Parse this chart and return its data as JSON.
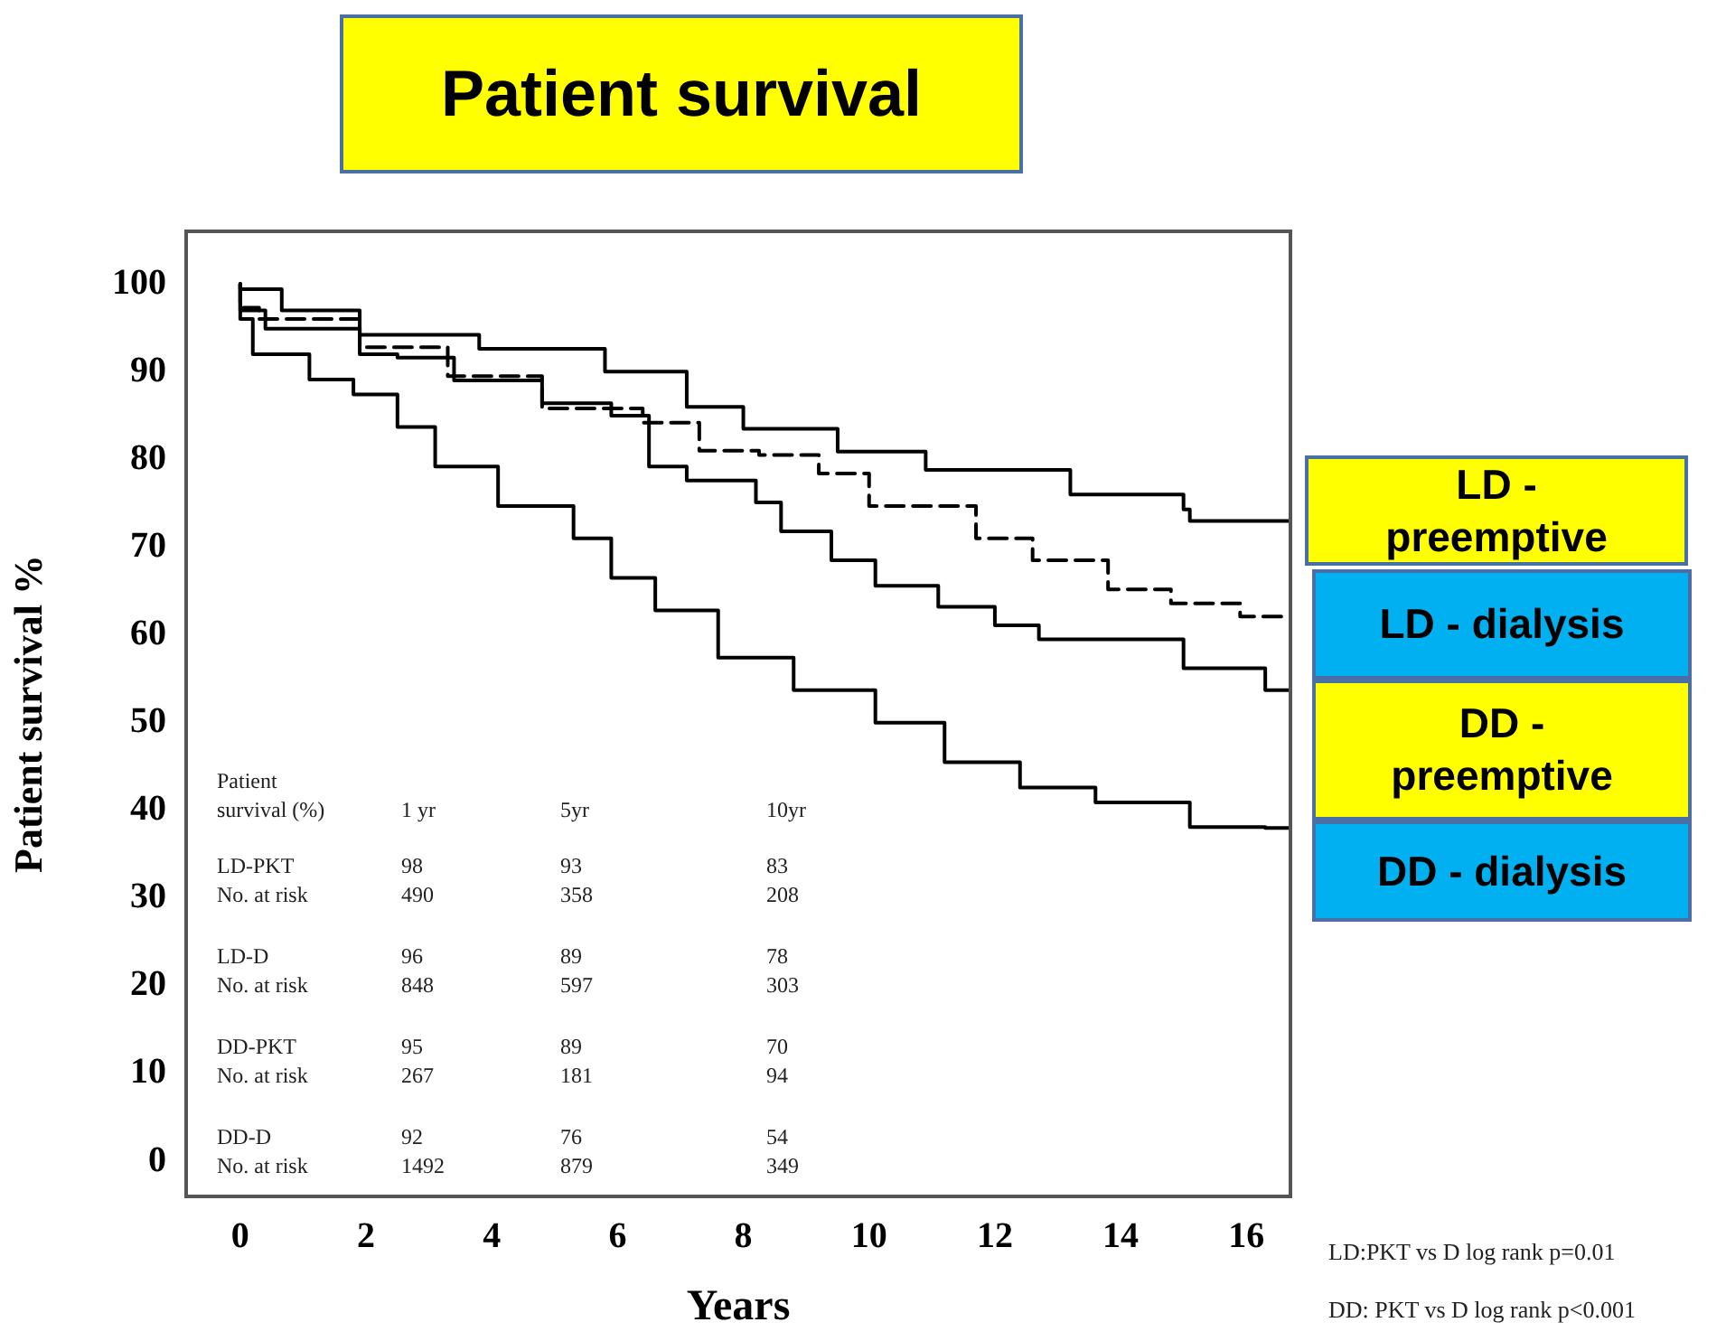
{
  "chart_data": {
    "type": "step",
    "title": "Patient survival",
    "xlabel": "Years",
    "ylabel": "Patient survival %",
    "xlim": [
      -0.86,
      16.7
    ],
    "xticks": [
      0,
      2,
      4,
      6,
      8,
      10,
      12,
      14,
      16
    ],
    "ylim": [
      -4,
      106
    ],
    "yticks": [
      0,
      10,
      20,
      30,
      40,
      50,
      60,
      70,
      80,
      90,
      100
    ],
    "grid": false,
    "legend": false,
    "marker": "none",
    "series": [
      {
        "name": "LD - preemptive",
        "color": "#000000",
        "line_style": "solid",
        "x": [
          0,
          0.66,
          1.9,
          3.8,
          5.8,
          7.1,
          8.0,
          9.5,
          10.9,
          11.5,
          13.2,
          13.9,
          15.0,
          15.1,
          15.9,
          16.7,
          16.7
        ],
        "values": [
          100,
          99.4,
          97,
          94.2,
          92.6,
          90,
          86,
          83.5,
          80.9,
          78.8,
          78.8,
          76,
          76,
          74.3,
          73,
          73,
          71.6
        ]
      },
      {
        "name": "LD - dialysis",
        "color": "#000000",
        "line_style": "dashed",
        "x": [
          0,
          0.3,
          1.9,
          3.3,
          4.8,
          6.4,
          7.3,
          8.25,
          9.2,
          10,
          11.7,
          12.6,
          13.8,
          14.8,
          15.9,
          16.7
        ],
        "values": [
          100,
          97.3,
          96,
          92.8,
          89.5,
          85.8,
          84.2,
          81,
          80.5,
          78.4,
          74.7,
          71,
          68.5,
          65.2,
          63.6,
          62.1
        ]
      },
      {
        "name": "DD - preemptive",
        "color": "#000000",
        "line_style": "solid",
        "x": [
          0,
          0.4,
          1.9,
          2.5,
          3.4,
          4.8,
          5.9,
          6.5,
          7.1,
          8.2,
          8.6,
          9.4,
          10.1,
          11.1,
          12.0,
          12.7,
          14.3,
          15.0,
          15.1,
          16.3,
          16.4,
          16.7,
          16.7
        ],
        "values": [
          100,
          97,
          94.9,
          92,
          91.6,
          89,
          86.4,
          85,
          79.2,
          77.6,
          75.1,
          71.8,
          68.5,
          65.6,
          63.2,
          61.1,
          59.5,
          59.5,
          56.2,
          56.2,
          53.7,
          53.7,
          50.4
        ]
      },
      {
        "name": "DD - dialysis",
        "color": "#000000",
        "line_style": "solid",
        "x": [
          0,
          0.2,
          1.1,
          1.8,
          2.5,
          3.1,
          4.1,
          5.3,
          5.9,
          6.6,
          7.6,
          8.8,
          10.1,
          11.2,
          12.4,
          13.6,
          15.1,
          16.3,
          16.7
        ],
        "values": [
          100,
          96,
          92,
          89.1,
          87.4,
          83.7,
          79.2,
          74.7,
          71,
          66.5,
          62.8,
          57.4,
          53.7,
          50,
          45.5,
          42.6,
          40.9,
          38.1,
          38
        ]
      }
    ],
    "annotations": [
      "Patient survival (%)",
      "1 yr",
      "5yr",
      "10yr",
      "LD-PKT",
      "98",
      "93",
      "83",
      "No. at risk",
      "490",
      "358",
      "208",
      "LD-D",
      "96",
      "89",
      "78",
      "No. at risk",
      "848",
      "597",
      "303",
      "DD-PKT",
      "95",
      "89",
      "70",
      "No. at risk",
      "267",
      "181",
      "94",
      "DD-D",
      "92",
      "76",
      "54",
      "No. at risk",
      "1492",
      "879",
      "349",
      "LD:PKT vs D log rank p=0.01",
      "DD: PKT vs D log rank p<0.001"
    ]
  }
}
